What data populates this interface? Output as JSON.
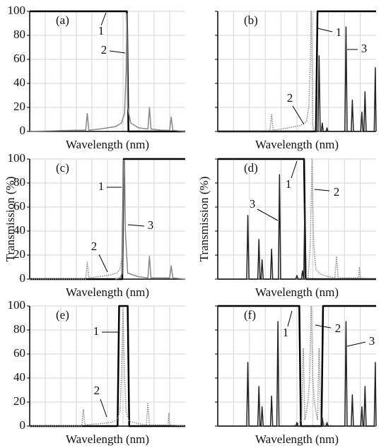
{
  "chart_data": [
    {
      "type": "line",
      "panel_label": "(a)",
      "xlabel": "Wavelength (nm)",
      "xlim": [
        0,
        100
      ],
      "ylim": [
        0,
        100
      ],
      "yticks": [
        0,
        20,
        40,
        60,
        80,
        100
      ],
      "tick_labels": true,
      "grid": true,
      "series": [
        {
          "name": "1",
          "color": "#000000",
          "line_width": 2.5,
          "line_style": "solid",
          "x": [
            0,
            62.5,
            63.5,
            100
          ],
          "values": [
            100,
            100,
            0,
            0
          ]
        },
        {
          "name": "2",
          "color": "#888888",
          "line_width": 1.5,
          "line_style": "solid",
          "x": [
            0,
            30,
            36,
            37,
            38,
            45,
            55,
            59,
            61,
            62,
            62.5,
            63,
            65,
            70,
            76,
            77,
            78,
            85,
            90,
            91,
            92,
            100
          ],
          "values": [
            0,
            1,
            1,
            15,
            1,
            2,
            4,
            7,
            15,
            50,
            98,
            20,
            7,
            3,
            2,
            20,
            2,
            1,
            1,
            12,
            1,
            0
          ]
        }
      ]
    },
    {
      "type": "line",
      "panel_label": "(b)",
      "xlabel": "Wavelength (nm)",
      "xlim": [
        0,
        100
      ],
      "ylim": [
        0,
        100
      ],
      "yticks": [
        0,
        20,
        40,
        60,
        80,
        100
      ],
      "tick_labels": false,
      "grid": true,
      "series": [
        {
          "name": "1",
          "color": "#000000",
          "line_width": 2.5,
          "line_style": "solid",
          "x": [
            0,
            62,
            63,
            100
          ],
          "values": [
            0,
            0,
            100,
            100
          ]
        },
        {
          "name": "2",
          "color": "#888888",
          "line_width": 1.5,
          "line_style": "dotted",
          "x": [
            0,
            30,
            33,
            34,
            35,
            45,
            52,
            56,
            57.5,
            58.5,
            59,
            59.5,
            60,
            61,
            100
          ],
          "values": [
            0,
            0,
            1,
            14,
            1,
            3,
            5,
            8,
            20,
            60,
            100,
            60,
            5,
            0,
            0
          ]
        },
        {
          "name": "3",
          "color": "#222222",
          "line_width": 1.5,
          "line_style": "solid",
          "x": [
            0,
            63.3,
            64,
            64.7,
            65.4,
            66,
            66.6,
            68.4,
            69,
            69.6,
            80.3,
            81,
            81.7,
            84.3,
            85,
            85.7,
            90.3,
            91,
            91.7,
            92.3,
            93,
            93.7,
            98.8,
            99.5,
            100
          ],
          "values": [
            0,
            0,
            63,
            0,
            0,
            7,
            0,
            0,
            3,
            0,
            0,
            87,
            0,
            0,
            26,
            0,
            0,
            16,
            0,
            0,
            33,
            0,
            0,
            53,
            0
          ]
        }
      ]
    },
    {
      "type": "line",
      "panel_label": "(c)",
      "xlabel": "Wavelength (nm)",
      "ylabel": "Transmission (%)",
      "xlim": [
        0,
        100
      ],
      "ylim": [
        0,
        100
      ],
      "yticks": [
        0,
        20,
        40,
        60,
        80,
        100
      ],
      "tick_labels": true,
      "grid": true,
      "series": [
        {
          "name": "1",
          "color": "#000000",
          "line_width": 2.5,
          "line_style": "solid",
          "x": [
            0,
            59.5,
            60.5,
            100
          ],
          "values": [
            0,
            0,
            100,
            100
          ]
        },
        {
          "name": "2",
          "color": "#888888",
          "line_width": 1.5,
          "line_style": "dotted",
          "x": [
            0,
            36,
            37,
            38,
            50,
            56,
            58,
            59.5
          ],
          "values": [
            0,
            0,
            14,
            1,
            3,
            5,
            8,
            20
          ]
        },
        {
          "name": "3",
          "color": "#888888",
          "line_width": 1.5,
          "line_style": "solid",
          "x": [
            55,
            58,
            59.5,
            60,
            60.5,
            61,
            61.5,
            63,
            70,
            76,
            77,
            78,
            85,
            90,
            91,
            92,
            100
          ],
          "values": [
            0,
            1,
            5,
            60,
            99,
            99,
            40,
            5,
            2,
            1,
            19,
            1,
            1,
            1,
            11,
            1,
            0
          ]
        }
      ]
    },
    {
      "type": "line",
      "panel_label": "(d)",
      "xlabel": "Wavelength (nm)",
      "ylabel": "Transmission (%)",
      "xlim": [
        0,
        100
      ],
      "ylim": [
        0,
        100
      ],
      "yticks": [
        0,
        20,
        40,
        60,
        80,
        100
      ],
      "tick_labels": false,
      "grid": true,
      "series": [
        {
          "name": "1",
          "color": "#000000",
          "line_width": 2.5,
          "line_style": "solid",
          "x": [
            0,
            54.5,
            55.5,
            100
          ],
          "values": [
            100,
            100,
            0,
            0
          ]
        },
        {
          "name": "2",
          "color": "#888888",
          "line_width": 1.5,
          "line_style": "dotted",
          "x": [
            0,
            57,
            58.5,
            59.5,
            60.5,
            62,
            65,
            70,
            74,
            75,
            76,
            85,
            89,
            89.5,
            90,
            100
          ],
          "values": [
            0,
            0,
            30,
            100,
            30,
            8,
            4,
            2,
            1,
            19,
            1,
            1,
            1,
            10,
            1,
            0
          ]
        },
        {
          "name": "3",
          "color": "#222222",
          "line_width": 1.5,
          "line_style": "solid",
          "x": [
            0,
            18.3,
            19,
            19.7,
            25.3,
            26,
            26.7,
            27.3,
            28,
            28.7,
            33.3,
            34,
            34.7,
            38.3,
            39,
            39.7,
            49.3,
            50,
            50.7,
            52.8,
            53.5,
            54.2,
            54.3,
            55,
            55.7,
            100
          ],
          "values": [
            0,
            0,
            53,
            0,
            0,
            33,
            0,
            0,
            16,
            0,
            0,
            25,
            0,
            0,
            87,
            0,
            0,
            3,
            0,
            0,
            7,
            0,
            0,
            63,
            0,
            0
          ]
        }
      ]
    },
    {
      "type": "line",
      "panel_label": "(e)",
      "xlabel": "Wavelength (nm)",
      "xlim": [
        0,
        100
      ],
      "ylim": [
        0,
        100
      ],
      "yticks": [
        0,
        20,
        40,
        60,
        80,
        100
      ],
      "tick_labels": true,
      "grid": true,
      "series": [
        {
          "name": "1",
          "color": "#000000",
          "line_width": 2.5,
          "line_style": "solid",
          "x": [
            0,
            56.5,
            57.5,
            63,
            64,
            100
          ],
          "values": [
            0,
            0,
            100,
            100,
            0,
            0
          ]
        },
        {
          "name": "2",
          "color": "#888888",
          "line_width": 1.5,
          "line_style": "dotted",
          "x": [
            0,
            33.5,
            34.5,
            35.5,
            45,
            52,
            56,
            58,
            59,
            60,
            61,
            62,
            64,
            70,
            75,
            76,
            77,
            85,
            89,
            89.5,
            90,
            100
          ],
          "values": [
            0,
            0,
            14,
            1,
            2,
            3,
            5,
            12,
            40,
            98,
            40,
            12,
            4,
            2,
            1,
            19,
            1,
            1,
            1,
            11,
            1,
            0
          ]
        }
      ]
    },
    {
      "type": "line",
      "panel_label": "(f)",
      "xlabel": "Wavelength (nm)",
      "xlim": [
        0,
        100
      ],
      "ylim": [
        0,
        100
      ],
      "yticks": [
        0,
        20,
        40,
        60,
        80,
        100
      ],
      "tick_labels": false,
      "grid": true,
      "series": [
        {
          "name": "1",
          "color": "#000000",
          "line_width": 2.5,
          "line_style": "solid",
          "x": [
            0,
            51.5,
            52.5,
            65.5,
            66.5,
            100
          ],
          "values": [
            100,
            100,
            0,
            0,
            100,
            100
          ]
        },
        {
          "name": "2",
          "color": "#888888",
          "line_width": 1.5,
          "line_style": "dotted",
          "x": [
            0,
            45,
            50,
            53,
            54,
            55,
            57,
            58,
            59,
            60,
            61,
            63,
            64,
            65,
            68,
            75,
            100
          ],
          "values": [
            0,
            0,
            1,
            5,
            65,
            5,
            20,
            40,
            100,
            40,
            20,
            5,
            65,
            5,
            1,
            0,
            0
          ]
        },
        {
          "name": "3",
          "color": "#222222",
          "line_width": 1.5,
          "line_style": "solid",
          "x": [
            0,
            18.3,
            19,
            19.7,
            25.3,
            26,
            26.7,
            27.3,
            28,
            28.7,
            33.3,
            34,
            34.7,
            37.3,
            38,
            38.7,
            49.3,
            50,
            50.7,
            65.3,
            66,
            66.7,
            68.4,
            69,
            69.6,
            80.3,
            81,
            81.7,
            84.3,
            85,
            85.7,
            90.3,
            91,
            91.7,
            92.3,
            93,
            93.7,
            98.8,
            99.5,
            100
          ],
          "values": [
            0,
            0,
            53,
            0,
            0,
            33,
            0,
            0,
            16,
            0,
            0,
            25,
            0,
            0,
            87,
            0,
            0,
            3,
            0,
            0,
            7,
            0,
            0,
            3,
            0,
            0,
            87,
            0,
            0,
            26,
            0,
            0,
            16,
            0,
            0,
            33,
            0,
            0,
            53,
            0
          ]
        }
      ]
    }
  ]
}
